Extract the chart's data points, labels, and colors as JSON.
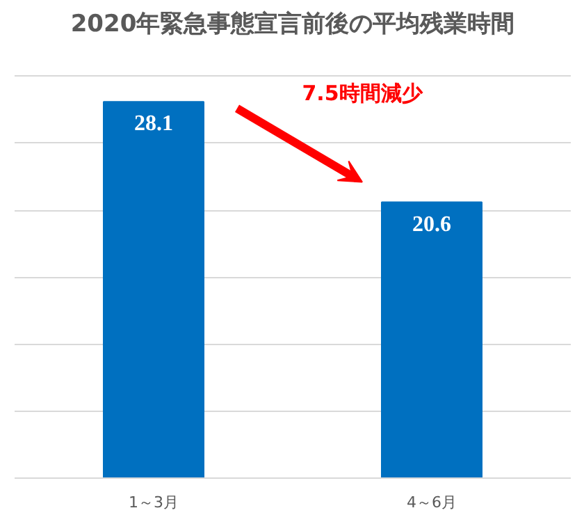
{
  "chart_data": {
    "type": "bar",
    "title": "2020年緊急事態宣言前後の平均残業時間",
    "categories": [
      "1～3月",
      "4～6月"
    ],
    "values": [
      28.1,
      20.6
    ],
    "color": "#0070c0",
    "data_labels": true,
    "grid": "y",
    "annotations": [
      "7.5時間減少"
    ]
  }
}
